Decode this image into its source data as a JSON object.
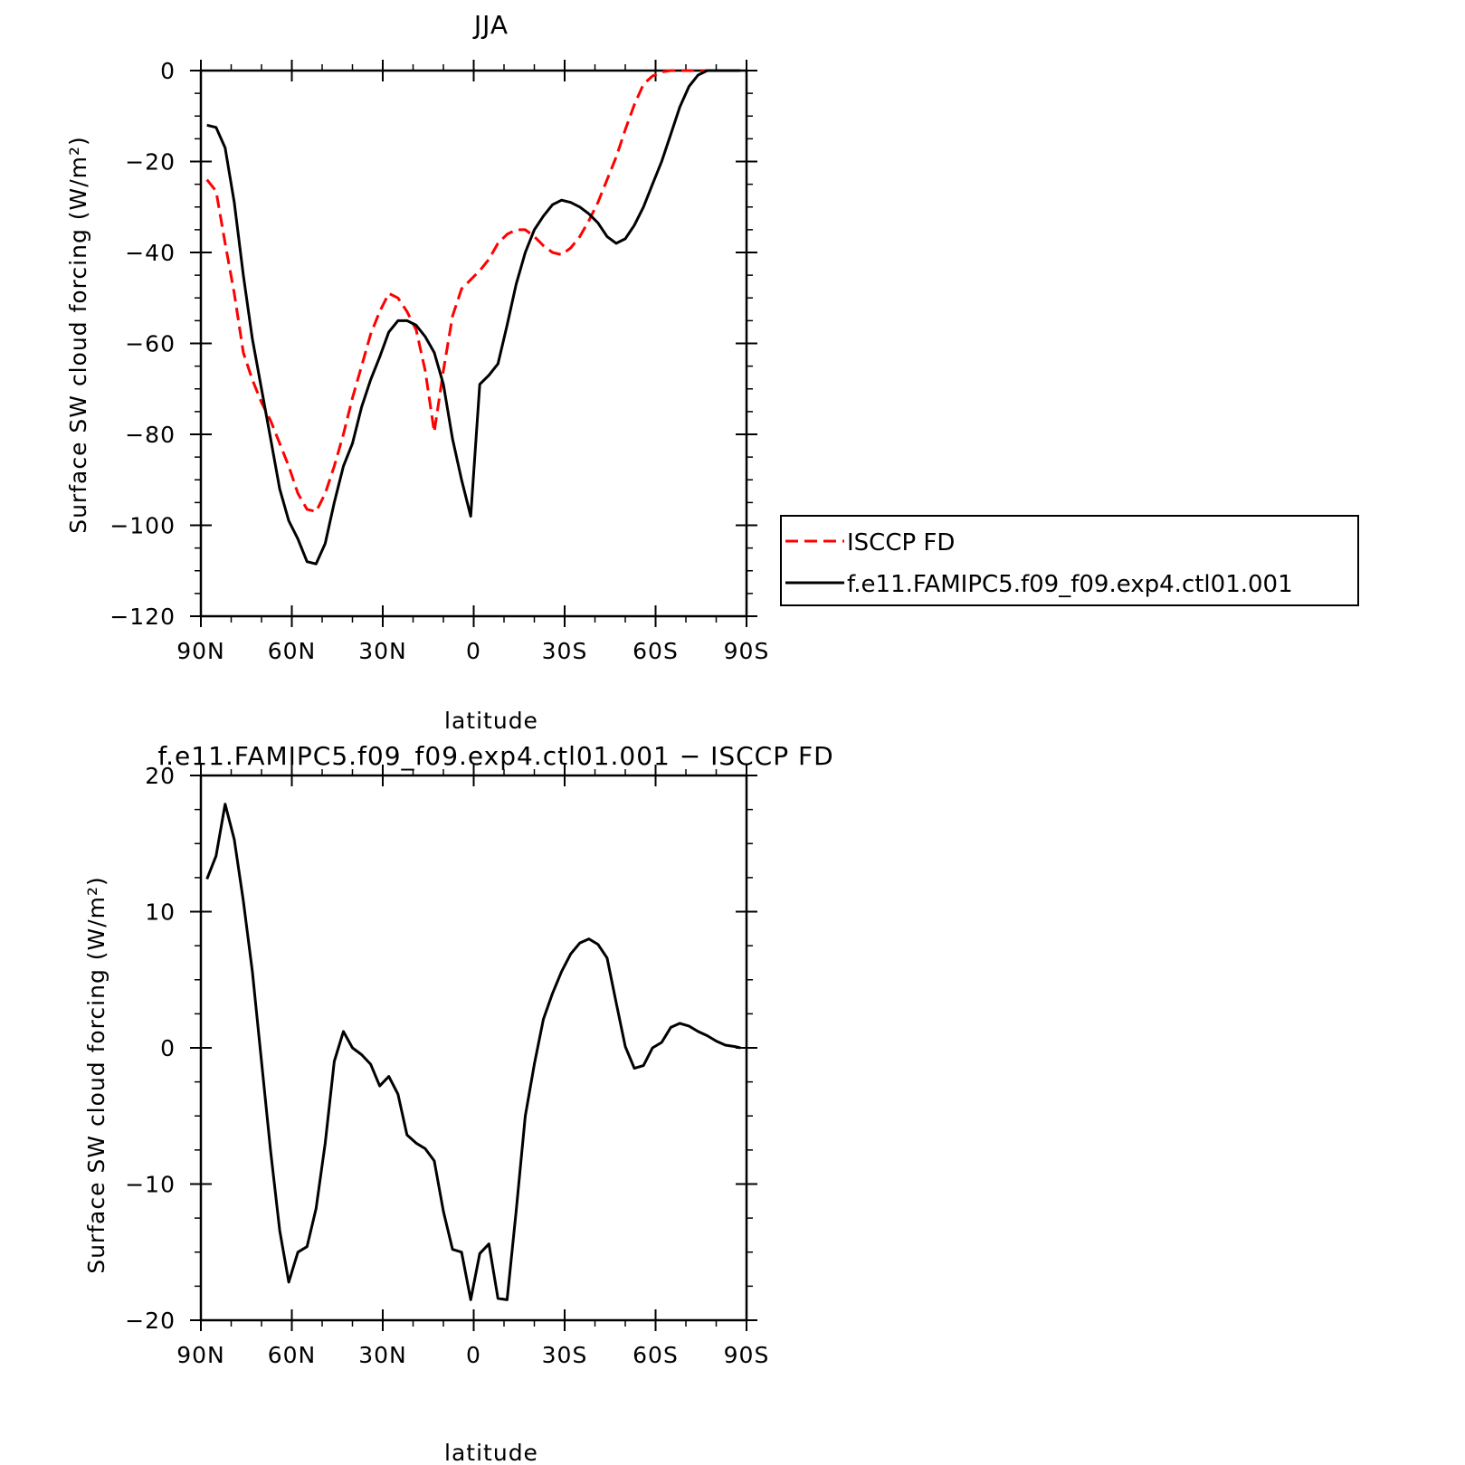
{
  "chart_data": [
    {
      "type": "line",
      "title": "JJA",
      "xlabel": "latitude",
      "ylabel": "Surface SW cloud forcing (W/m²)",
      "xlim": [
        90,
        -90
      ],
      "ylim": [
        -120,
        0
      ],
      "xticks": [
        90,
        60,
        30,
        0,
        -30,
        -60,
        -90
      ],
      "xtick_labels": [
        "90N",
        "60N",
        "30N",
        "0",
        "30S",
        "60S",
        "90S"
      ],
      "yticks": [
        0,
        -20,
        -40,
        -60,
        -80,
        -100,
        -120
      ],
      "ytick_labels": [
        "0",
        "−20",
        "−40",
        "−60",
        "−80",
        "−100",
        "−120"
      ],
      "legend_position": "right",
      "series": [
        {
          "name": "ISCCP FD",
          "color": "#ff0000",
          "dash": "dashed",
          "x": [
            88,
            85,
            82,
            79,
            76,
            73,
            70,
            67,
            64,
            61,
            58,
            55,
            52,
            49,
            46,
            43,
            40,
            37,
            34,
            31,
            28,
            25,
            22,
            19,
            16,
            13,
            10,
            7,
            4,
            1,
            -2,
            -5,
            -8,
            -11,
            -14,
            -17,
            -20,
            -23,
            -26,
            -29,
            -32,
            -35,
            -38,
            -41,
            -44,
            -47,
            -50,
            -53,
            -56,
            -59,
            -62,
            -65,
            -68,
            -71,
            -74,
            -77,
            -80,
            -83,
            -86,
            -88
          ],
          "y": [
            -24,
            -26.5,
            -38,
            -49,
            -62,
            -68,
            -73,
            -77,
            -82,
            -87,
            -93,
            -96.5,
            -97,
            -93,
            -87,
            -80,
            -72,
            -65,
            -58,
            -53,
            -49,
            -50,
            -53,
            -57,
            -66,
            -79.5,
            -66,
            -54,
            -48,
            -46,
            -44,
            -41.5,
            -38,
            -36,
            -35,
            -35,
            -36.5,
            -38.5,
            -40,
            -40.5,
            -39,
            -36.5,
            -33,
            -29,
            -24,
            -19,
            -13,
            -7.5,
            -3,
            -1.2,
            -0.3,
            0,
            0,
            0,
            0,
            0,
            0,
            0,
            0,
            0
          ]
        },
        {
          "name": "f.e11.FAMIPC5.f09_f09.exp4.ctl01.001",
          "color": "#000000",
          "dash": "solid",
          "x": [
            88,
            85,
            82,
            79,
            76,
            73,
            70,
            67,
            64,
            61,
            58,
            55,
            52,
            49,
            46,
            43,
            40,
            37,
            34,
            31,
            28,
            25,
            22,
            19,
            16,
            13,
            10,
            7,
            4,
            1,
            -2,
            -5,
            -8,
            -11,
            -14,
            -17,
            -20,
            -23,
            -26,
            -29,
            -32,
            -35,
            -38,
            -41,
            -44,
            -47,
            -50,
            -53,
            -56,
            -59,
            -62,
            -65,
            -68,
            -71,
            -74,
            -77,
            -80,
            -83,
            -86,
            -88
          ],
          "y": [
            -12,
            -12.5,
            -17,
            -29,
            -45,
            -59,
            -70,
            -81,
            -92,
            -99,
            -103,
            -108,
            -108.5,
            -104,
            -95,
            -87,
            -82,
            -74,
            -68,
            -63,
            -57.5,
            -55,
            -55,
            -56,
            -58.5,
            -62,
            -69,
            -81,
            -90,
            -98,
            -69,
            -67,
            -64.5,
            -56,
            -47,
            -40,
            -35,
            -32,
            -29.5,
            -28.5,
            -29,
            -30,
            -31.5,
            -33.5,
            -36.5,
            -38,
            -37,
            -34,
            -30,
            -25,
            -20,
            -14,
            -8,
            -3.5,
            -1,
            0,
            0,
            0,
            0,
            0
          ]
        }
      ]
    },
    {
      "type": "line",
      "title": "f.e11.FAMIPC5.f09_f09.exp4.ctl01.001 − ISCCP FD",
      "xlabel": "latitude",
      "ylabel": "Surface SW cloud forcing (W/m²)",
      "xlim": [
        90,
        -90
      ],
      "ylim": [
        -20,
        20
      ],
      "xticks": [
        90,
        60,
        30,
        0,
        -30,
        -60,
        -90
      ],
      "xtick_labels": [
        "90N",
        "60N",
        "30N",
        "0",
        "30S",
        "60S",
        "90S"
      ],
      "yticks": [
        20,
        10,
        0,
        -10,
        -20
      ],
      "ytick_labels": [
        "20",
        "10",
        "0",
        "−10",
        "−20"
      ],
      "series": [
        {
          "color": "#000000",
          "dash": "solid",
          "x": [
            88,
            85,
            82,
            79,
            76,
            73,
            70,
            67,
            64,
            61,
            58,
            55,
            52,
            49,
            46,
            43,
            40,
            37,
            34,
            31,
            28,
            25,
            22,
            19,
            16,
            13,
            10,
            7,
            4,
            1,
            -2,
            -5,
            -8,
            -11,
            -14,
            -17,
            -20,
            -23,
            -26,
            -29,
            -32,
            -35,
            -38,
            -41,
            -44,
            -47,
            -50,
            -53,
            -56,
            -59,
            -62,
            -65,
            -68,
            -71,
            -74,
            -77,
            -80,
            -83,
            -86,
            -88
          ],
          "y": [
            12.4,
            14.1,
            17.9,
            15.3,
            10.8,
            5.6,
            -1,
            -7.6,
            -13.4,
            -17.2,
            -15,
            -14.6,
            -11.8,
            -7,
            -1,
            1.2,
            0,
            -0.5,
            -1.2,
            -2.8,
            -2.1,
            -3.4,
            -6.4,
            -7,
            -7.4,
            -8.3,
            -12,
            -14.8,
            -15,
            -18.5,
            -15.1,
            -14.4,
            -18.4,
            -18.5,
            -12,
            -5,
            -1.2,
            2.1,
            4,
            5.6,
            6.9,
            7.7,
            8,
            7.6,
            6.6,
            3.3,
            0.1,
            -1.5,
            -1.3,
            0,
            0.4,
            1.5,
            1.8,
            1.6,
            1.2,
            0.9,
            0.5,
            0.2,
            0.1,
            0
          ]
        }
      ]
    }
  ]
}
